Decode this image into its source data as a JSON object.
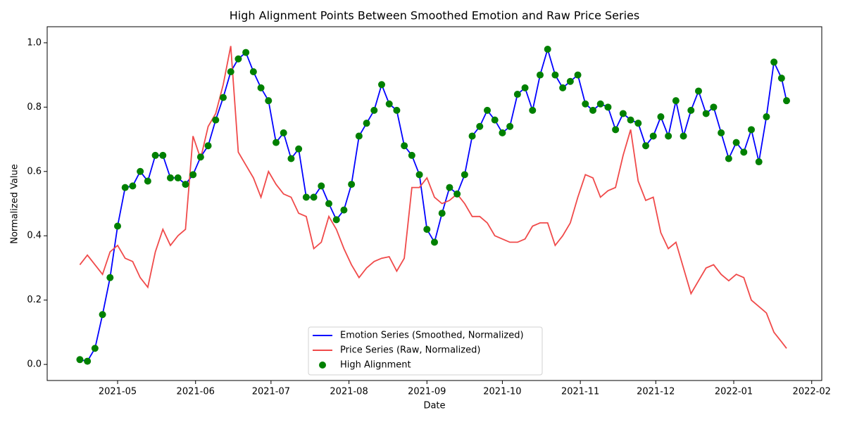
{
  "chart_data": {
    "type": "line",
    "title": "High Alignment Points Between Smoothed Emotion and Raw Price Series",
    "xlabel": "Date",
    "ylabel": "Normalized Value",
    "x": [
      "2021-04-16",
      "2021-04-19",
      "2021-04-22",
      "2021-04-25",
      "2021-04-28",
      "2021-05-01",
      "2021-05-04",
      "2021-05-07",
      "2021-05-10",
      "2021-05-13",
      "2021-05-16",
      "2021-05-19",
      "2021-05-22",
      "2021-05-25",
      "2021-05-28",
      "2021-05-31",
      "2021-06-03",
      "2021-06-06",
      "2021-06-09",
      "2021-06-12",
      "2021-06-15",
      "2021-06-18",
      "2021-06-21",
      "2021-06-24",
      "2021-06-27",
      "2021-06-30",
      "2021-07-03",
      "2021-07-06",
      "2021-07-09",
      "2021-07-12",
      "2021-07-15",
      "2021-07-18",
      "2021-07-21",
      "2021-07-24",
      "2021-07-27",
      "2021-07-30",
      "2021-08-02",
      "2021-08-05",
      "2021-08-08",
      "2021-08-11",
      "2021-08-14",
      "2021-08-17",
      "2021-08-20",
      "2021-08-23",
      "2021-08-26",
      "2021-08-29",
      "2021-09-01",
      "2021-09-04",
      "2021-09-07",
      "2021-09-10",
      "2021-09-13",
      "2021-09-16",
      "2021-09-19",
      "2021-09-22",
      "2021-09-25",
      "2021-09-28",
      "2021-10-01",
      "2021-10-04",
      "2021-10-07",
      "2021-10-10",
      "2021-10-13",
      "2021-10-16",
      "2021-10-19",
      "2021-10-22",
      "2021-10-25",
      "2021-10-28",
      "2021-10-31",
      "2021-11-03",
      "2021-11-06",
      "2021-11-09",
      "2021-11-12",
      "2021-11-15",
      "2021-11-18",
      "2021-11-21",
      "2021-11-24",
      "2021-11-27",
      "2021-11-30",
      "2021-12-03",
      "2021-12-06",
      "2021-12-09",
      "2021-12-12",
      "2021-12-15",
      "2021-12-18",
      "2021-12-21",
      "2021-12-24",
      "2021-12-27",
      "2021-12-30",
      "2022-01-02",
      "2022-01-05",
      "2022-01-08",
      "2022-01-11",
      "2022-01-14",
      "2022-01-17",
      "2022-01-20",
      "2022-01-22"
    ],
    "series": [
      {
        "name": "Emotion Series (Smoothed, Normalized)",
        "style": "line",
        "color": "#0000ff",
        "values": [
          0.015,
          0.01,
          0.05,
          0.155,
          0.27,
          0.43,
          0.55,
          0.555,
          0.6,
          0.57,
          0.65,
          0.65,
          0.58,
          0.58,
          0.56,
          0.59,
          0.645,
          0.68,
          0.76,
          0.83,
          0.91,
          0.95,
          0.97,
          0.91,
          0.86,
          0.82,
          0.69,
          0.72,
          0.64,
          0.67,
          0.52,
          0.52,
          0.555,
          0.5,
          0.45,
          0.48,
          0.56,
          0.71,
          0.75,
          0.79,
          0.87,
          0.81,
          0.79,
          0.68,
          0.65,
          0.59,
          0.42,
          0.38,
          0.47,
          0.55,
          0.53,
          0.59,
          0.71,
          0.74,
          0.79,
          0.76,
          0.72,
          0.74,
          0.84,
          0.86,
          0.79,
          0.9,
          0.98,
          0.9,
          0.86,
          0.88,
          0.9,
          0.81,
          0.79,
          0.81,
          0.8,
          0.73,
          0.78,
          0.76,
          0.75,
          0.68,
          0.71,
          0.77,
          0.71,
          0.82,
          0.71,
          0.79,
          0.85,
          0.78,
          0.8,
          0.72,
          0.64,
          0.69,
          0.66,
          0.73,
          0.63,
          0.77,
          0.94,
          0.89,
          0.82
        ]
      },
      {
        "name": "Price Series (Raw, Normalized)",
        "style": "line",
        "color": "#f04a4a",
        "values": [
          0.31,
          0.34,
          0.31,
          0.28,
          0.35,
          0.37,
          0.33,
          0.32,
          0.27,
          0.24,
          0.35,
          0.42,
          0.37,
          0.4,
          0.42,
          0.71,
          0.64,
          0.74,
          0.78,
          0.87,
          0.99,
          0.66,
          0.62,
          0.58,
          0.52,
          0.6,
          0.56,
          0.53,
          0.52,
          0.47,
          0.46,
          0.36,
          0.38,
          0.46,
          0.42,
          0.36,
          0.31,
          0.27,
          0.3,
          0.32,
          0.33,
          0.335,
          0.29,
          0.33,
          0.55,
          0.55,
          0.58,
          0.52,
          0.5,
          0.51,
          0.53,
          0.5,
          0.46,
          0.46,
          0.44,
          0.4,
          0.39,
          0.38,
          0.38,
          0.39,
          0.43,
          0.44,
          0.44,
          0.37,
          0.4,
          0.44,
          0.52,
          0.59,
          0.58,
          0.52,
          0.54,
          0.55,
          0.65,
          0.73,
          0.57,
          0.51,
          0.52,
          0.41,
          0.36,
          0.38,
          0.3,
          0.22,
          0.26,
          0.3,
          0.31,
          0.28,
          0.26,
          0.28,
          0.27,
          0.2,
          0.18,
          0.16,
          0.1,
          0.07,
          0.05
        ]
      },
      {
        "name": "High Alignment",
        "style": "scatter",
        "color": "#008000",
        "values": [
          0.015,
          0.01,
          0.05,
          0.155,
          0.27,
          0.43,
          0.55,
          0.555,
          0.6,
          0.57,
          0.65,
          0.65,
          0.58,
          0.58,
          0.56,
          0.59,
          0.645,
          0.68,
          0.76,
          0.83,
          0.91,
          0.95,
          0.97,
          0.91,
          0.86,
          0.82,
          0.69,
          0.72,
          0.64,
          0.67,
          0.52,
          0.52,
          0.555,
          0.5,
          0.45,
          0.48,
          0.56,
          0.71,
          0.75,
          0.79,
          0.87,
          0.81,
          0.79,
          0.68,
          0.65,
          0.59,
          0.42,
          0.38,
          0.47,
          0.55,
          0.53,
          0.59,
          0.71,
          0.74,
          0.79,
          0.76,
          0.72,
          0.74,
          0.84,
          0.86,
          0.79,
          0.9,
          0.98,
          0.9,
          0.86,
          0.88,
          0.9,
          0.81,
          0.79,
          0.81,
          0.8,
          0.73,
          0.78,
          0.76,
          0.75,
          0.68,
          0.71,
          0.77,
          0.71,
          0.82,
          0.71,
          0.79,
          0.85,
          0.78,
          0.8,
          0.72,
          0.64,
          0.69,
          0.66,
          0.73,
          0.63,
          0.77,
          0.94,
          0.89,
          0.82
        ]
      }
    ],
    "xlim": [
      "2021-04-03",
      "2022-02-05"
    ],
    "xticks": [
      {
        "value": "2021-05-01",
        "label": "2021-05"
      },
      {
        "value": "2021-06-01",
        "label": "2021-06"
      },
      {
        "value": "2021-07-01",
        "label": "2021-07"
      },
      {
        "value": "2021-08-01",
        "label": "2021-08"
      },
      {
        "value": "2021-09-01",
        "label": "2021-09"
      },
      {
        "value": "2021-10-01",
        "label": "2021-10"
      },
      {
        "value": "2021-11-01",
        "label": "2021-11"
      },
      {
        "value": "2021-12-01",
        "label": "2021-12"
      },
      {
        "value": "2022-01-01",
        "label": "2022-01"
      },
      {
        "value": "2022-02-01",
        "label": "2022-02"
      }
    ],
    "ylim": [
      -0.05,
      1.05
    ],
    "yticks": [
      {
        "value": 0,
        "label": "0.0"
      },
      0.2,
      0.4,
      0.6,
      0.8,
      {
        "value": 1,
        "label": "1.0"
      }
    ],
    "grid": false,
    "legend": "lower center"
  }
}
